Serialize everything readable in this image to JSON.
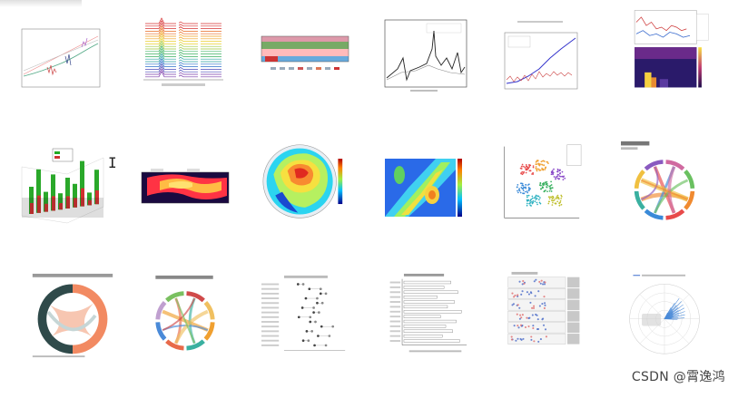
{
  "watermark": "CSDN @霄逸鸿",
  "gallery": {
    "thumbnails": [
      {
        "name": "spectrum-comparison-thumb"
      },
      {
        "name": "waterfall-ridge-thumb"
      },
      {
        "name": "heatmap-banded-thumb"
      },
      {
        "name": "energy-spectrum-thumb"
      },
      {
        "name": "trend-line-thumb"
      },
      {
        "name": "multi-panel-thumb"
      },
      {
        "name": "3d-bar-thumb"
      },
      {
        "name": "heat-profile-thumb"
      },
      {
        "name": "polar-contour-thumb"
      },
      {
        "name": "contour-map-thumb"
      },
      {
        "name": "cluster-scatter-thumb"
      },
      {
        "name": "chord-migration-thumb"
      },
      {
        "name": "donut-chord-thumb"
      },
      {
        "name": "chord-trade-thumb"
      },
      {
        "name": "dot-plot-thumb"
      },
      {
        "name": "horizontal-bars-thumb"
      },
      {
        "name": "faceted-scatter-thumb"
      },
      {
        "name": "polar-wind-thumb"
      }
    ]
  }
}
